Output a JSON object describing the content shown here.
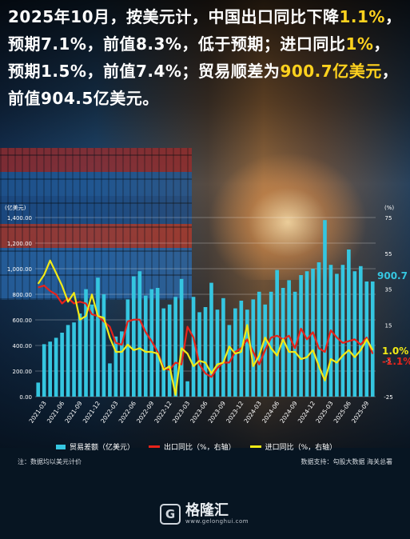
{
  "headline": {
    "p1": "2025年10月，按美元计，中国出口同比下降",
    "v1": "1.1%",
    "p2": "，预期7.1%，前值8.3%，低于预期；进口同比",
    "v2": "1%",
    "p3": "，预期1.5%，前值7.4%；贸易顺差为",
    "v3": "900.7亿美元",
    "p4": "，前值904.5亿美元。"
  },
  "chart_data": {
    "type": "bar+line",
    "left_unit": "(亿美元)",
    "right_unit": "(%)",
    "ylim_left": [
      0,
      1400
    ],
    "ylim_right": [
      -25,
      75
    ],
    "left_ticks": [
      "0.00",
      "200.00",
      "400.00",
      "600.00",
      "800.00",
      "1,000.00",
      "1,200.00",
      "1,400.00"
    ],
    "right_ticks": [
      "-25",
      "-5",
      "15",
      "35",
      "55",
      "75"
    ],
    "x_tick_labels": [
      "2021-03",
      "2021-06",
      "2021-09",
      "2021-12",
      "2022-03",
      "2022-06",
      "2022-09",
      "2022-12",
      "2023-03",
      "2023-06",
      "2023-09",
      "2023-12",
      "2024-03",
      "2024-06",
      "2024-09",
      "2024-12",
      "2025-03",
      "2025-06",
      "2025-09"
    ],
    "months": [
      "2021-02",
      "2021-03",
      "2021-04",
      "2021-05",
      "2021-06",
      "2021-07",
      "2021-08",
      "2021-09",
      "2021-10",
      "2021-11",
      "2021-12",
      "2022-01",
      "2022-02",
      "2022-03",
      "2022-04",
      "2022-05",
      "2022-06",
      "2022-07",
      "2022-08",
      "2022-09",
      "2022-10",
      "2022-11",
      "2022-12",
      "2023-01",
      "2023-02",
      "2023-03",
      "2023-04",
      "2023-05",
      "2023-06",
      "2023-07",
      "2023-08",
      "2023-09",
      "2023-10",
      "2023-11",
      "2023-12",
      "2024-01",
      "2024-02",
      "2024-03",
      "2024-04",
      "2024-05",
      "2024-06",
      "2024-07",
      "2024-08",
      "2024-09",
      "2024-10",
      "2024-11",
      "2024-12",
      "2025-01",
      "2025-02",
      "2025-03",
      "2025-04",
      "2025-05",
      "2025-06",
      "2025-07",
      "2025-08",
      "2025-09",
      "2025-10"
    ],
    "series": [
      {
        "name": "贸易差额（亿美元）",
        "axis": "left",
        "type": "bar",
        "color": "#35c6e0",
        "values": [
          110,
          410,
          430,
          460,
          500,
          560,
          580,
          650,
          840,
          720,
          930,
          800,
          260,
          470,
          510,
          760,
          940,
          980,
          790,
          840,
          850,
          690,
          720,
          780,
          920,
          120,
          780,
          660,
          700,
          890,
          680,
          770,
          560,
          690,
          750,
          680,
          760,
          820,
          720,
          820,
          990,
          850,
          910,
          820,
          950,
          980,
          1000,
          1050,
          1380,
          1030,
          960,
          1030,
          1150,
          980,
          1020,
          900,
          900
        ]
      },
      {
        "name": "出口同比（%，右轴）",
        "axis": "right",
        "type": "line",
        "color": "#e8231a",
        "values": [
          36,
          37,
          34,
          32,
          27,
          30,
          27,
          28,
          27,
          21,
          20,
          17,
          14,
          5,
          4,
          17,
          18,
          18,
          11,
          6,
          0,
          -9,
          -10,
          -6,
          -7,
          14,
          8,
          -7,
          -12,
          -14,
          -9,
          -6,
          -6,
          0,
          2,
          7,
          0,
          -7,
          1,
          8,
          9,
          7,
          9,
          2,
          13,
          7,
          11,
          2,
          0,
          12,
          8,
          5,
          6,
          7,
          4,
          8,
          -1.1
        ]
      },
      {
        "name": "进口同比（%，右轴）",
        "axis": "right",
        "type": "line",
        "color": "#f2ea16",
        "values": [
          38,
          43,
          51,
          44,
          37,
          28,
          33,
          18,
          20,
          32,
          20,
          19,
          8,
          0,
          0,
          4,
          1,
          2,
          0,
          0,
          -1,
          -10,
          -8,
          -24,
          2,
          -1,
          -8,
          -5,
          -6,
          -12,
          -7,
          -6,
          3,
          -1,
          0,
          15,
          -8,
          -2,
          8,
          2,
          -2,
          7,
          0,
          0,
          -4,
          -3,
          1,
          -8,
          -16,
          -4,
          -6,
          -2,
          1,
          -3,
          1,
          7,
          1.0
        ]
      }
    ],
    "annotations": {
      "bar_last": "900.7",
      "import_last": "1.0%",
      "export_last": "-1.1%"
    }
  },
  "legend": {
    "bar": "贸易差额（亿美元）",
    "export": "出口同比（%，右轴）",
    "import": "进口同比（%，右轴）"
  },
  "footer": {
    "note": "注：数据均以美元计价",
    "source": "数据支持：勾股大数据 海关总署",
    "logo_mark": "G",
    "logo_name": "格隆汇",
    "logo_url": "www.gelonghui.com"
  }
}
